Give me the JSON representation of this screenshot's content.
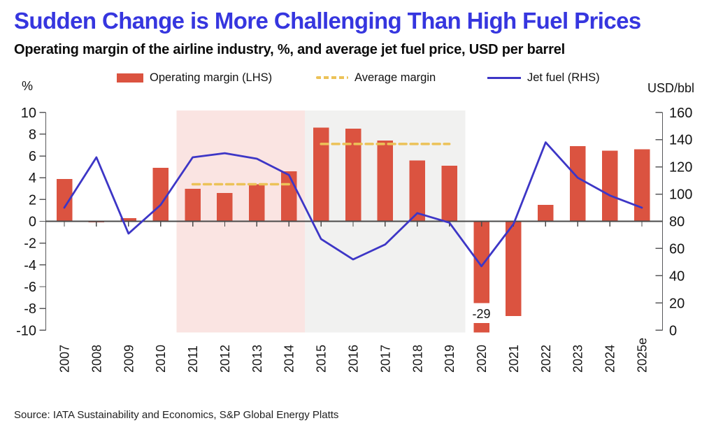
{
  "header": {
    "title": "Sudden Change is More Challenging Than High Fuel Prices",
    "subtitle": "Operating margin of the airline industry, %, and average jet fuel price, USD per barrel"
  },
  "legend": [
    {
      "label": "Operating margin (LHS)",
      "swatch": "bar",
      "color": "#DB5340"
    },
    {
      "label": "Average margin",
      "swatch": "dashes",
      "color": "#ECC258"
    },
    {
      "label": "Jet fuel (RHS)",
      "swatch": "line",
      "color": "#3D36C6"
    }
  ],
  "chart_data": {
    "type": "bar+line",
    "categories": [
      "2007",
      "2008",
      "2009",
      "2010",
      "2011",
      "2012",
      "2013",
      "2014",
      "2015",
      "2016",
      "2017",
      "2018",
      "2019",
      "2020",
      "2021",
      "2022",
      "2023",
      "2024",
      "2025e"
    ],
    "left_axis": {
      "label": "%",
      "min": -10,
      "max": 10,
      "ticks": [
        10,
        8,
        6,
        4,
        2,
        0,
        -2,
        -4,
        -6,
        -8,
        -10
      ]
    },
    "right_axis": {
      "label": "USD/bbl",
      "min": 0,
      "max": 160,
      "ticks": [
        160,
        140,
        120,
        100,
        80,
        60,
        40,
        20,
        0
      ]
    },
    "series": [
      {
        "name": "Operating margin (LHS)",
        "type": "bar",
        "axis": "left",
        "color": "#DB5340",
        "values": [
          3.9,
          -0.1,
          0.3,
          4.9,
          3.0,
          2.6,
          3.4,
          4.6,
          8.6,
          8.5,
          7.4,
          5.6,
          5.1,
          -29,
          -8.7,
          1.5,
          6.9,
          6.5,
          6.6
        ]
      },
      {
        "name": "Jet fuel (RHS)",
        "type": "line",
        "axis": "right",
        "color": "#3D36C6",
        "values": [
          90,
          127,
          71,
          92,
          127,
          130,
          126,
          114,
          67,
          52,
          63,
          86,
          79,
          47,
          78,
          138,
          112,
          99,
          90
        ]
      },
      {
        "name": "Average margin",
        "type": "dashed-segments",
        "axis": "left",
        "color": "#ECC258",
        "segments": [
          {
            "from": "2011",
            "to": "2014",
            "value": 3.4
          },
          {
            "from": "2015",
            "to": "2019",
            "value": 7.1
          }
        ]
      }
    ],
    "bands": [
      {
        "from": "2011",
        "to": "2014",
        "color": "#FAE4E2"
      },
      {
        "from": "2015",
        "to": "2019",
        "color": "#F1F1F0"
      }
    ],
    "annotations": [
      {
        "year": "2020",
        "text": "-29"
      }
    ],
    "grid": false,
    "legend_position": "top"
  },
  "source": "Source: IATA Sustainability and Economics, S&P Global Energy Platts"
}
